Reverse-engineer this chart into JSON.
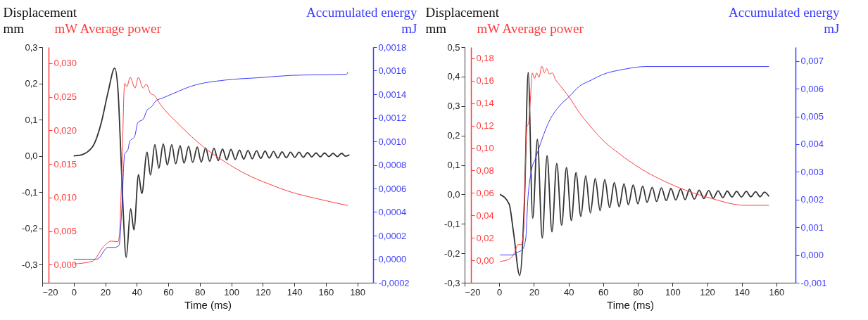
{
  "chart_data": [
    {
      "type": "line",
      "xlabel": "Time (ms)",
      "ylabel": "Displacement mm",
      "y2label": "mW Average power",
      "y3label": "Accumulated energy mJ",
      "xlim": [
        -20,
        190
      ],
      "xticks": [
        -20,
        0,
        20,
        40,
        60,
        80,
        100,
        120,
        140,
        160,
        180
      ],
      "ylim": [
        -0.35,
        0.3
      ],
      "yticks": [
        {
          "value": -0.3,
          "label": "-0,3"
        },
        {
          "value": -0.2,
          "label": "-0,2"
        },
        {
          "value": -0.1,
          "label": "-0,1"
        },
        {
          "value": 0,
          "label": "0,0"
        },
        {
          "value": 0.1,
          "label": "0,1"
        },
        {
          "value": 0.2,
          "label": "0,2"
        },
        {
          "value": 0.3,
          "label": "0,3"
        }
      ],
      "y2lim": [
        -0.0027,
        0.0324
      ],
      "y2ticks": [
        {
          "value": 0,
          "label": "0,000"
        },
        {
          "value": 0.005,
          "label": "0,005"
        },
        {
          "value": 0.01,
          "label": "0,010"
        },
        {
          "value": 0.015,
          "label": "0,015"
        },
        {
          "value": 0.02,
          "label": "0,020"
        },
        {
          "value": 0.025,
          "label": "0,025"
        },
        {
          "value": 0.03,
          "label": "0,030"
        }
      ],
      "y3lim": [
        -0.0002,
        0.0018
      ],
      "y3ticks": [
        {
          "value": -0.0002,
          "label": "-0,0002"
        },
        {
          "value": 0,
          "label": "0,0000"
        },
        {
          "value": 0.0002,
          "label": "0,0002"
        },
        {
          "value": 0.0004,
          "label": "0,0004"
        },
        {
          "value": 0.0006,
          "label": "0,0006"
        },
        {
          "value": 0.0008,
          "label": "0,0008"
        },
        {
          "value": 0.001,
          "label": "0,0010"
        },
        {
          "value": 0.0012,
          "label": "0,0012"
        },
        {
          "value": 0.0014,
          "label": "0,0014"
        },
        {
          "value": 0.0016,
          "label": "0,0016"
        },
        {
          "value": 0.0018,
          "label": "0,0018"
        }
      ],
      "series": [
        {
          "color": "#333333",
          "axis": "y",
          "x": [
            0,
            4.2,
            11.9,
            17.5,
            21.8,
            26,
            28.1,
            29.5,
            31,
            33.3,
            36.1,
            38.2,
            41.1,
            43.2,
            46.5,
            48.7,
            51.5,
            54,
            56.8,
            59.4,
            62.2,
            64.7,
            67.5,
            70,
            72.9,
            75.5,
            78.4,
            80.9,
            83.7,
            86.3,
            89,
            91.7,
            94.4,
            97.1,
            99.8,
            102.5,
            105.2,
            107.9,
            110.6,
            113.3,
            116,
            118.7,
            121.4,
            124.1,
            126.8,
            129.5,
            132.2,
            134.9,
            137.6,
            140.3,
            143,
            145.7,
            148.4,
            151.1,
            153.8,
            156.5,
            159.2,
            161.9,
            164.6,
            167.3,
            170,
            172.5,
            175
          ],
          "values": [
            0,
            0.002,
            0.025,
            0.092,
            0.176,
            0.242,
            0.18,
            0.047,
            -0.114,
            -0.28,
            -0.146,
            -0.204,
            -0.052,
            -0.104,
            0.01,
            -0.053,
            0.031,
            -0.034,
            0.033,
            -0.025,
            0.031,
            -0.022,
            0.028,
            -0.02,
            0.026,
            -0.018,
            0.024,
            -0.017,
            0.022,
            -0.015,
            0.021,
            -0.013,
            0.019,
            -0.011,
            0.018,
            -0.01,
            0.016,
            -0.009,
            0.015,
            -0.008,
            0.014,
            -0.007,
            0.013,
            -0.006,
            0.012,
            -0.006,
            0.011,
            -0.005,
            0.01,
            -0.004,
            0.01,
            -0.004,
            0.009,
            -0.003,
            0.008,
            -0.003,
            0.008,
            -0.002,
            0.007,
            -0.002,
            0.007,
            -0.001,
            0.003
          ]
        },
        {
          "color": "#ff3b3b",
          "axis": "y2",
          "x": [
            0,
            11.9,
            19,
            23.9,
            28.1,
            29,
            30.5,
            32.3,
            33.7,
            35.8,
            38.9,
            41,
            44,
            46,
            48.7,
            51.2,
            54,
            68,
            82,
            96,
            110,
            124,
            138,
            153,
            174
          ],
          "values": [
            0.0001,
            0.0005,
            0.0027,
            0.0035,
            0.0034,
            0.0045,
            0.0136,
            0.027,
            0.0265,
            0.0279,
            0.0263,
            0.0279,
            0.0263,
            0.0269,
            0.0255,
            0.0252,
            0.0242,
            0.0206,
            0.0176,
            0.0153,
            0.0134,
            0.012,
            0.0108,
            0.0099,
            0.0088
          ]
        },
        {
          "color": "#3b3bff",
          "axis": "y3",
          "x": [
            0,
            14.7,
            21.7,
            26,
            28.8,
            30.5,
            32.3,
            34.4,
            35.5,
            38.6,
            40.7,
            44.2,
            46.3,
            49.8,
            51.9,
            56.8,
            63.8,
            75,
            96,
            117,
            138,
            173.2,
            174
          ],
          "values": [
            0,
            0,
            0.0001,
            0.0001,
            0.00012,
            0.00043,
            0.00089,
            0.00093,
            0.001,
            0.00104,
            0.00116,
            0.00119,
            0.00126,
            0.0013,
            0.00134,
            0.00137,
            0.00141,
            0.00147,
            0.00152,
            0.00154,
            0.00156,
            0.00157,
            0.00159
          ]
        }
      ]
    },
    {
      "type": "line",
      "xlabel": "Time (ms)",
      "ylabel": "Displacement mm",
      "y2label": "mW Average power",
      "y3label": "Accumulated energy mJ",
      "xlim": [
        -20,
        171
      ],
      "xticks": [
        -20,
        0,
        20,
        40,
        60,
        80,
        100,
        120,
        140,
        160
      ],
      "ylim": [
        -0.3,
        0.5
      ],
      "yticks": [
        {
          "value": -0.3,
          "label": "-0,3"
        },
        {
          "value": -0.2,
          "label": "-0,2"
        },
        {
          "value": -0.1,
          "label": "-0,1"
        },
        {
          "value": 0,
          "label": "0,0"
        },
        {
          "value": 0.1,
          "label": "0,1"
        },
        {
          "value": 0.2,
          "label": "0,2"
        },
        {
          "value": 0.3,
          "label": "0,3"
        },
        {
          "value": 0.4,
          "label": "0,4"
        },
        {
          "value": 0.5,
          "label": "0,5"
        }
      ],
      "y2lim": [
        -0.02,
        0.19
      ],
      "y2ticks": [
        {
          "value": 0,
          "label": "0,00"
        },
        {
          "value": 0.02,
          "label": "0,02"
        },
        {
          "value": 0.04,
          "label": "0,04"
        },
        {
          "value": 0.06,
          "label": "0,06"
        },
        {
          "value": 0.08,
          "label": "0,08"
        },
        {
          "value": 0.1,
          "label": "0,10"
        },
        {
          "value": 0.12,
          "label": "0,12"
        },
        {
          "value": 0.14,
          "label": "0,14"
        },
        {
          "value": 0.16,
          "label": "0,16"
        },
        {
          "value": 0.18,
          "label": "0,18"
        }
      ],
      "y3lim": [
        -0.001,
        0.0075
      ],
      "y3ticks": [
        {
          "value": -0.001,
          "label": "-0,001"
        },
        {
          "value": 0,
          "label": "0,000"
        },
        {
          "value": 0.001,
          "label": "0,001"
        },
        {
          "value": 0.002,
          "label": "0,002"
        },
        {
          "value": 0.003,
          "label": "0,003"
        },
        {
          "value": 0.004,
          "label": "0,004"
        },
        {
          "value": 0.005,
          "label": "0,005"
        },
        {
          "value": 0.006,
          "label": "0,006"
        },
        {
          "value": 0.007,
          "label": "0,007"
        }
      ],
      "series": [
        {
          "color": "#333333",
          "axis": "y",
          "x": [
            0.4,
            5.7,
            8.2,
            11.8,
            14.6,
            16.7,
            19.3,
            22,
            24.8,
            27.6,
            30.4,
            33.2,
            36,
            38.8,
            41.6,
            44.3,
            47.1,
            49.9,
            52.6,
            55.4,
            58.2,
            60.9,
            63.7,
            66.4,
            69.2,
            72,
            74.5,
            77.3,
            80,
            82.8,
            85.3,
            88.3,
            90.8,
            93.6,
            96.4,
            99.1,
            101.9,
            104.7,
            107.3,
            109.8,
            112.6,
            115.4,
            118.1,
            120.9,
            123.5,
            126.3,
            129.1,
            131.6,
            134.4,
            137,
            139.8,
            142.6,
            145.2,
            148,
            150.6,
            153.1,
            155.7
          ],
          "values": [
            0,
            -0.033,
            -0.128,
            -0.275,
            -0.01,
            0.414,
            -0.081,
            0.187,
            -0.148,
            0.131,
            -0.127,
            0.105,
            -0.105,
            0.091,
            -0.089,
            0.074,
            -0.075,
            0.063,
            -0.063,
            0.054,
            -0.055,
            0.05,
            -0.045,
            0.04,
            -0.042,
            0.036,
            -0.035,
            0.032,
            -0.032,
            0.028,
            -0.027,
            0.024,
            -0.024,
            0.022,
            -0.021,
            0.02,
            -0.019,
            0.018,
            -0.018,
            0.017,
            -0.016,
            0.014,
            -0.014,
            0.013,
            -0.013,
            0.012,
            -0.011,
            0.011,
            -0.009,
            0.01,
            -0.009,
            0.01,
            -0.008,
            0.009,
            -0.008,
            0.008,
            -0.007
          ]
        },
        {
          "color": "#ff3b3b",
          "axis": "y2",
          "x": [
            0.4,
            5.7,
            8.9,
            10.8,
            12.7,
            14,
            15.9,
            16.9,
            17.8,
            19.1,
            20.3,
            21.6,
            22.9,
            24.6,
            26.1,
            27.4,
            28.9,
            30.6,
            32.5,
            35,
            40.1,
            46.5,
            52.8,
            59.2,
            71.9,
            84.6,
            97.4,
            110.1,
            122.8,
            135.5,
            141.2,
            155.7
          ],
          "values": [
            -0.001,
            0.001,
            0.007,
            0.014,
            0.014,
            0.025,
            0.119,
            0.122,
            0.139,
            0.167,
            0.162,
            0.167,
            0.163,
            0.173,
            0.167,
            0.171,
            0.166,
            0.167,
            0.161,
            0.156,
            0.146,
            0.131,
            0.119,
            0.108,
            0.092,
            0.079,
            0.069,
            0.061,
            0.055,
            0.05,
            0.049,
            0.049
          ]
        },
        {
          "color": "#3b3bff",
          "axis": "y3",
          "x": [
            0.4,
            8.2,
            10.8,
            13.4,
            15.3,
            16.5,
            18.4,
            21,
            24.8,
            28.6,
            33.7,
            40.1,
            46.5,
            52.8,
            59.2,
            71.9,
            84.6,
            110.1,
            155.7
          ],
          "values": [
            0,
            0,
            0.0001,
            0.0002,
            0.0006,
            0.002,
            0.003,
            0.0035,
            0.0042,
            0.0048,
            0.0053,
            0.0057,
            0.0061,
            0.0063,
            0.0065,
            0.0067,
            0.0068,
            0.0068,
            0.0068
          ]
        }
      ]
    }
  ]
}
